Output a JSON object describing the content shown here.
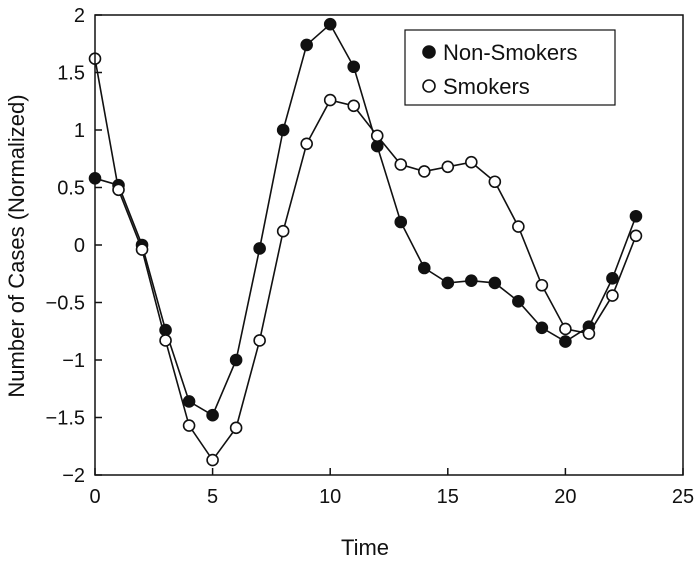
{
  "chart_data": {
    "type": "line",
    "xlabel": "Time",
    "ylabel": "Number of Cases (Normalized)",
    "xlim": [
      0,
      25
    ],
    "ylim": [
      -2,
      2
    ],
    "x_ticks": [
      0,
      5,
      10,
      15,
      20,
      25
    ],
    "y_ticks": [
      2,
      1.5,
      1,
      0.5,
      0,
      -0.5,
      -1,
      -1.5,
      -2
    ],
    "grid": false,
    "legend_position": "top-right",
    "x": [
      0,
      1,
      2,
      3,
      4,
      5,
      6,
      7,
      8,
      9,
      10,
      11,
      12,
      13,
      14,
      15,
      16,
      17,
      18,
      19,
      20,
      21,
      22,
      23
    ],
    "series": [
      {
        "name": "Non-Smokers",
        "marker": "filled-circle",
        "color": "#111111",
        "values": [
          0.58,
          0.52,
          0.0,
          -0.74,
          -1.36,
          -1.48,
          -1.0,
          -0.03,
          1.0,
          1.74,
          1.92,
          1.55,
          0.86,
          0.2,
          -0.2,
          -0.33,
          -0.31,
          -0.33,
          -0.49,
          -0.72,
          -0.84,
          -0.71,
          -0.29,
          0.25
        ]
      },
      {
        "name": "Smokers",
        "marker": "open-circle",
        "color": "#111111",
        "values": [
          1.62,
          0.48,
          -0.04,
          -0.83,
          -1.57,
          -1.87,
          -1.59,
          -0.83,
          0.12,
          0.88,
          1.26,
          1.21,
          0.95,
          0.7,
          0.64,
          0.68,
          0.72,
          0.55,
          0.16,
          -0.35,
          -0.73,
          -0.77,
          -0.44,
          0.08
        ]
      }
    ]
  }
}
